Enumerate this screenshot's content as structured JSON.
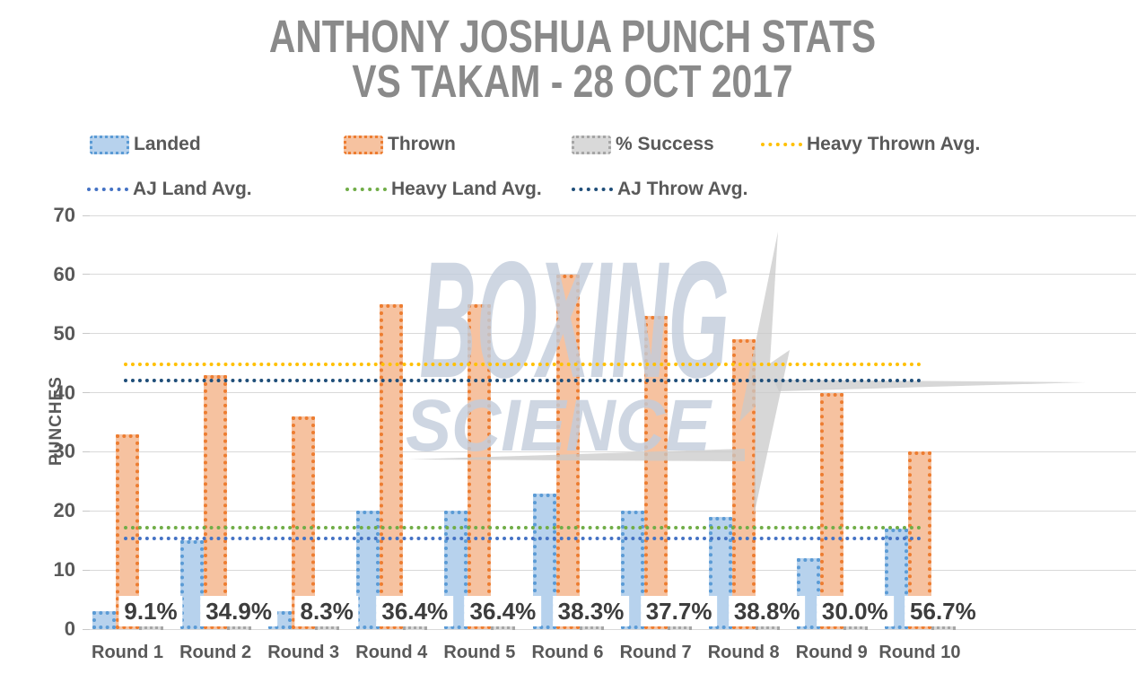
{
  "title": {
    "line1": "ANTHONY JOSHUA PUNCH STATS",
    "line2": "VS TAKAM - 28 OCT 2017"
  },
  "watermark": {
    "line1": "BOXING",
    "line2": "SCIENCE"
  },
  "y_axis": {
    "label": "PUNCHES",
    "min": 0,
    "max": 70,
    "step": 10
  },
  "legend": {
    "items": [
      {
        "label": "Landed",
        "type": "box",
        "fill": "#b7d2ed",
        "border": "#5b9bd5"
      },
      {
        "label": "Thrown",
        "type": "box",
        "fill": "#f6c2a0",
        "border": "#ed7d31"
      },
      {
        "label": "% Success",
        "type": "box",
        "fill": "#d9d9d9",
        "border": "#a6a6a6"
      },
      {
        "label": "Heavy Thrown Avg.",
        "type": "line",
        "color": "#ffc000"
      },
      {
        "label": "AJ Land Avg.",
        "type": "line",
        "color": "#4472c4"
      },
      {
        "label": "Heavy Land Avg.",
        "type": "line",
        "color": "#70ad47"
      },
      {
        "label": "AJ Throw Avg.",
        "type": "line",
        "color": "#1f4e79"
      }
    ]
  },
  "chart_data": {
    "type": "bar",
    "title": "ANTHONY JOSHUA PUNCH STATS VS TAKAM - 28 OCT 2017",
    "categories": [
      "Round 1",
      "Round 2",
      "Round 3",
      "Round 4",
      "Round 5",
      "Round 6",
      "Round 7",
      "Round 8",
      "Round 9",
      "Round 10"
    ],
    "series": [
      {
        "name": "Landed",
        "values": [
          3,
          15,
          3,
          20,
          20,
          23,
          20,
          19,
          12,
          17
        ],
        "fill": "#b7d2ed",
        "border": "#5b9bd5"
      },
      {
        "name": "Thrown",
        "values": [
          33,
          43,
          36,
          55,
          55,
          60,
          53,
          49,
          40,
          30
        ],
        "fill": "#f6c2a0",
        "border": "#ed7d31"
      },
      {
        "name": "% Success",
        "values": [
          0.091,
          0.349,
          0.083,
          0.364,
          0.364,
          0.383,
          0.377,
          0.388,
          0.3,
          0.567
        ],
        "labels": [
          "9.1%",
          "34.9%",
          "8.3%",
          "36.4%",
          "36.4%",
          "38.3%",
          "37.7%",
          "38.8%",
          "30.0%",
          "56.7%"
        ],
        "fill": "#d9d9d9",
        "border": "#a6a6a6"
      }
    ],
    "reference_lines": [
      {
        "name": "Heavy Thrown Avg.",
        "value": 44.8,
        "color": "#ffc000"
      },
      {
        "name": "AJ Throw Avg.",
        "value": 42.1,
        "color": "#1f4e79"
      },
      {
        "name": "Heavy Land Avg.",
        "value": 17.2,
        "color": "#70ad47"
      },
      {
        "name": "AJ Land Avg.",
        "value": 15.3,
        "color": "#4472c4"
      }
    ],
    "xlabel": "",
    "ylabel": "PUNCHES",
    "ylim": [
      0,
      70
    ],
    "grid": true,
    "legend_position": "top"
  },
  "colors": {
    "title_text": "#8a8a8a",
    "axis_text": "#595959",
    "gridline": "#d9d9d9",
    "pct_label_text": "#3d3d3d",
    "watermark": "#c2cddc",
    "bolt": "#c9c9c9"
  }
}
